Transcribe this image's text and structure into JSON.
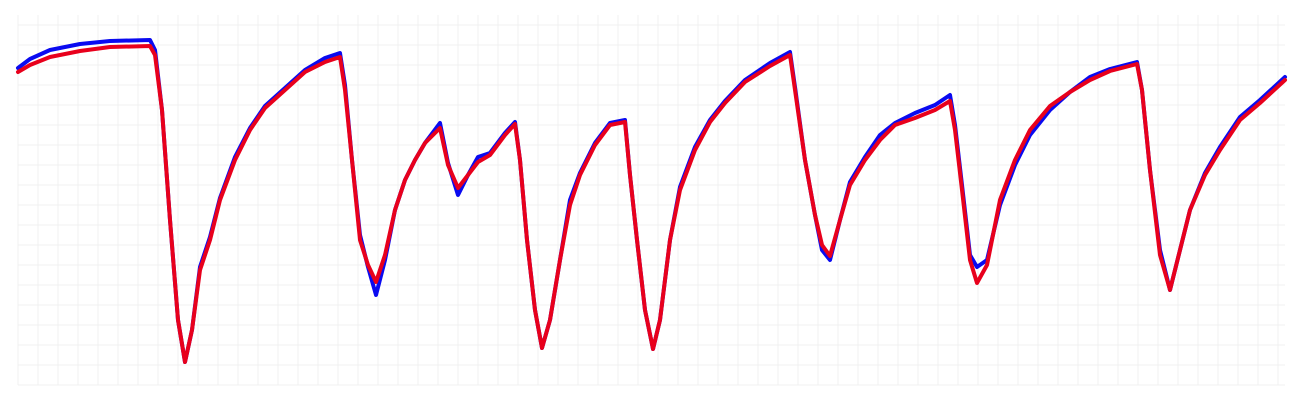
{
  "chart_data": {
    "type": "line",
    "x": [
      0,
      12,
      32,
      62,
      92,
      132,
      137,
      144,
      152,
      160,
      167,
      174,
      182,
      192,
      202,
      217,
      232,
      247,
      267,
      287,
      307,
      322,
      327,
      334,
      342,
      350,
      358,
      367,
      377,
      387,
      397,
      407,
      422,
      430,
      440,
      450,
      460,
      472,
      487,
      497,
      502,
      509,
      517,
      524,
      532,
      542,
      552,
      562,
      577,
      592,
      607,
      612,
      619,
      627,
      635,
      642,
      652,
      662,
      677,
      692,
      707,
      727,
      752,
      772,
      777,
      787,
      797,
      804,
      812,
      822,
      832,
      847,
      862,
      877,
      897,
      917,
      932,
      937,
      944,
      952,
      959,
      969,
      982,
      997,
      1012,
      1032,
      1052,
      1072,
      1092,
      1119,
      1124,
      1132,
      1142,
      1152,
      1162,
      1172,
      1187,
      1202,
      1222,
      1242,
      1267
    ],
    "series": [
      {
        "color": "#0a0af0",
        "values": [
          317,
          326,
          335,
          341,
          344,
          345,
          335,
          275,
          165,
          65,
          23,
          55,
          118,
          148,
          187,
          228,
          257,
          279,
          297,
          315,
          327,
          332,
          300,
          225,
          150,
          118,
          90,
          125,
          175,
          205,
          225,
          242,
          262,
          222,
          190,
          210,
          228,
          232,
          252,
          263,
          225,
          145,
          75,
          37,
          65,
          125,
          185,
          212,
          242,
          262,
          265,
          210,
          145,
          75,
          36,
          65,
          145,
          198,
          238,
          265,
          284,
          305,
          322,
          333,
          298,
          225,
          170,
          135,
          125,
          165,
          203,
          228,
          250,
          262,
          272,
          280,
          290,
          260,
          200,
          130,
          118,
          125,
          180,
          220,
          250,
          275,
          293,
          308,
          316,
          323,
          295,
          215,
          135,
          95,
          135,
          175,
          212,
          238,
          268,
          285,
          308
        ]
      },
      {
        "color": "#e8001c",
        "values": [
          313,
          320,
          328,
          334,
          338,
          339,
          330,
          275,
          165,
          65,
          23,
          55,
          115,
          145,
          185,
          225,
          255,
          277,
          295,
          313,
          323,
          328,
          295,
          225,
          145,
          120,
          103,
          130,
          175,
          205,
          225,
          242,
          257,
          220,
          197,
          210,
          223,
          230,
          250,
          261,
          225,
          145,
          75,
          37,
          65,
          125,
          180,
          210,
          240,
          260,
          263,
          210,
          145,
          75,
          36,
          65,
          145,
          195,
          235,
          263,
          282,
          303,
          319,
          330,
          295,
          225,
          170,
          140,
          129,
          165,
          200,
          225,
          245,
          260,
          267,
          275,
          284,
          255,
          195,
          125,
          102,
          120,
          185,
          225,
          255,
          279,
          293,
          305,
          314,
          321,
          295,
          215,
          130,
          95,
          135,
          175,
          210,
          235,
          265,
          282,
          305
        ]
      }
    ],
    "xlim": [
      0,
      1267
    ],
    "ylim": [
      0,
      370
    ],
    "xticks": [
      0,
      20,
      40,
      60,
      80,
      100,
      120,
      140,
      160,
      180,
      200,
      220,
      240,
      260,
      280,
      300,
      320,
      340,
      360,
      380,
      400,
      420,
      440,
      460,
      480,
      500,
      520,
      540,
      560,
      580,
      600,
      620,
      640,
      660,
      680,
      700,
      720,
      740,
      760,
      780,
      800,
      820,
      840,
      860,
      880,
      900,
      920,
      940,
      960,
      980,
      1000,
      1020,
      1040,
      1060,
      1080,
      1100,
      1120,
      1140,
      1160,
      1180,
      1200,
      1220,
      1240,
      1260
    ],
    "yticks": [
      0,
      20,
      40,
      60,
      80,
      100,
      120,
      140,
      160,
      180,
      200,
      220,
      240,
      260,
      280,
      300,
      320,
      340,
      360
    ],
    "grid": true
  }
}
